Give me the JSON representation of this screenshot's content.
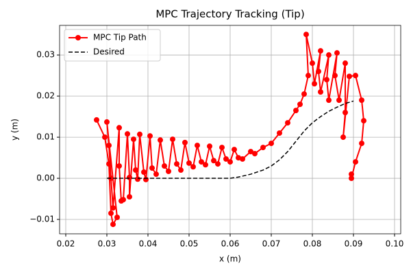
{
  "chart_data": {
    "type": "line",
    "title": "MPC Trajectory Tracking (Tip)",
    "x_label": "x (m)",
    "y_label": "y (m)",
    "xlim": [
      0.0185,
      0.1015
    ],
    "xticks": [
      0.02,
      0.03,
      0.04,
      0.05,
      0.06,
      0.07,
      0.08,
      0.09,
      {
        "value": 0.1,
        "label": "0.10"
      }
    ],
    "ylim": [
      -0.0135,
      0.0372
    ],
    "yticks": [
      {
        "value": -0.01,
        "label": "−0.01"
      },
      {
        "value": 0,
        "label": "0.00"
      },
      0.01,
      0.02,
      0.03
    ],
    "grid": true,
    "legend": "upper left",
    "series": [
      {
        "name": "MPC Tip Path",
        "color": "#ff0000",
        "marker": "circle",
        "dash": "solid",
        "x": [
          0.0275,
          0.0295,
          0.0305,
          0.031,
          0.0315,
          0.0325,
          0.03,
          0.0305,
          0.031,
          0.0315,
          0.033,
          0.033,
          0.0335,
          0.034,
          0.035,
          0.0355,
          0.0355,
          0.0365,
          0.037,
          0.0375,
          0.038,
          0.039,
          0.0395,
          0.0405,
          0.041,
          0.042,
          0.043,
          0.044,
          0.045,
          0.046,
          0.047,
          0.048,
          0.049,
          0.05,
          0.051,
          0.052,
          0.053,
          0.054,
          0.055,
          0.056,
          0.057,
          0.058,
          0.059,
          0.06,
          0.061,
          0.062,
          0.063,
          0.065,
          0.066,
          0.068,
          0.07,
          0.072,
          0.074,
          0.076,
          0.077,
          0.078,
          0.079,
          0.0785,
          0.08,
          0.0805,
          0.082,
          0.0815,
          0.082,
          0.084,
          0.0835,
          0.084,
          0.086,
          0.0855,
          0.0865,
          0.088,
          0.088,
          0.0875,
          0.089,
          0.0905,
          0.092,
          0.0925,
          0.092,
          0.0905,
          0.0895,
          0.0895
        ],
        "values": [
          0.0142,
          0.01,
          0.0035,
          -0.0085,
          -0.0112,
          -0.0095,
          0.0137,
          0.008,
          0.0,
          -0.0072,
          0.0123,
          0.003,
          -0.0055,
          -0.0052,
          0.0108,
          0.0002,
          -0.0045,
          0.0095,
          0.002,
          -0.0002,
          0.0107,
          0.0015,
          -0.0003,
          0.0103,
          0.0025,
          0.001,
          0.0093,
          0.003,
          0.0017,
          0.0095,
          0.0035,
          0.002,
          0.0087,
          0.0037,
          0.0028,
          0.008,
          0.004,
          0.0033,
          0.0078,
          0.0043,
          0.0035,
          0.0075,
          0.0047,
          0.004,
          0.007,
          0.005,
          0.0047,
          0.0065,
          0.006,
          0.0075,
          0.0085,
          0.011,
          0.0135,
          0.0165,
          0.018,
          0.0205,
          0.025,
          0.035,
          0.028,
          0.023,
          0.031,
          0.026,
          0.021,
          0.03,
          0.024,
          0.019,
          0.0305,
          0.025,
          0.019,
          0.028,
          0.016,
          0.01,
          0.0248,
          0.025,
          0.019,
          0.014,
          0.0085,
          0.004,
          0.0,
          0.001
        ]
      },
      {
        "name": "Desired",
        "color": "#000000",
        "marker": "none",
        "dash": "dashed",
        "x": [
          0.03,
          0.06,
          0.062,
          0.065,
          0.068,
          0.07,
          0.072,
          0.074,
          0.076,
          0.078,
          0.08,
          0.082,
          0.084,
          0.086,
          0.088,
          0.09
        ],
        "values": [
          0,
          0,
          0.0003,
          0.001,
          0.002,
          0.003,
          0.0045,
          0.0065,
          0.009,
          0.0115,
          0.0135,
          0.015,
          0.0163,
          0.0173,
          0.0182,
          0.0188
        ]
      }
    ]
  }
}
